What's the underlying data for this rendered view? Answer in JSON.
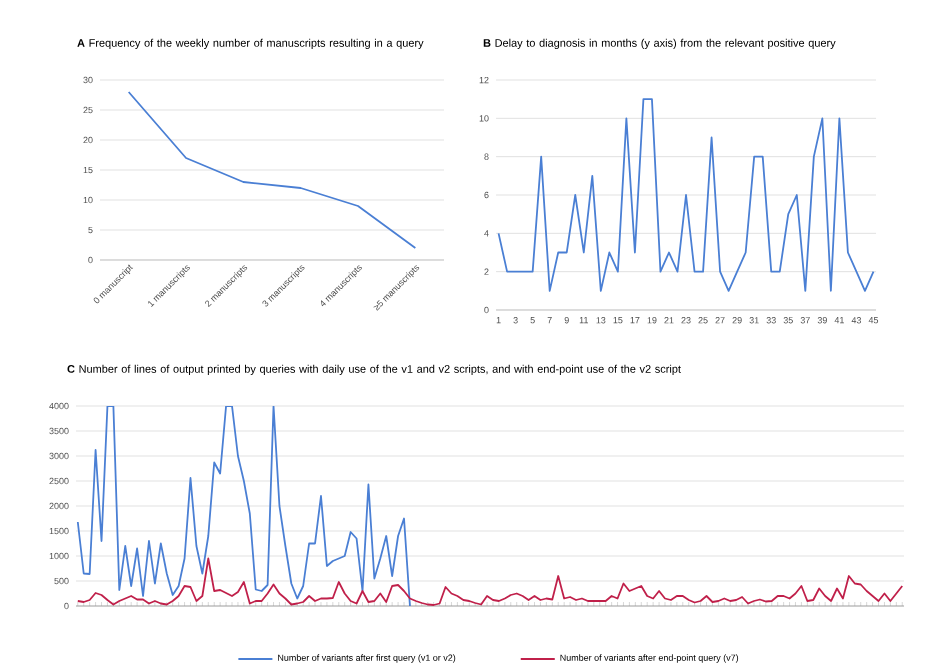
{
  "chart_data": [
    {
      "type": "line",
      "title": "**A**  Frequency of the weekly number of manuscripts resulting in a query",
      "categories": [
        "0 manuscript",
        "1 manuscripts",
        "2 manuscripts",
        "3 manuscripts",
        "4 manuscripts",
        "≥5 manuscripts"
      ],
      "series": [
        {
          "color": "#4a7fd4",
          "values": [
            28,
            17,
            13,
            12,
            9,
            2
          ]
        }
      ],
      "ylim": [
        0,
        30
      ],
      "yticks": [
        0,
        5,
        10,
        15,
        20,
        25,
        30
      ],
      "grid": "y",
      "legend": false,
      "marker": "none"
    },
    {
      "type": "line",
      "title": "**B**  Delay to diagnosis in months (y axis) from the relevant positive query",
      "categories": [
        "1",
        null,
        "3",
        null,
        "5",
        null,
        "7",
        null,
        "9",
        null,
        "11",
        null,
        "13",
        null,
        "15",
        null,
        "17",
        null,
        "19",
        null,
        "21",
        null,
        "23",
        null,
        "25",
        null,
        "27",
        null,
        "29",
        null,
        "31",
        null,
        "33",
        null,
        "35",
        null,
        "37",
        null,
        "39",
        null,
        "41",
        null,
        "43",
        null,
        "45"
      ],
      "series": [
        {
          "color": "#4a7fd4",
          "values": [
            4,
            2,
            2,
            2,
            2,
            8,
            1,
            3,
            3,
            6,
            3,
            7,
            1,
            3,
            2,
            10,
            3,
            11,
            11,
            2,
            3,
            2,
            6,
            2,
            2,
            9,
            2,
            1,
            2,
            3,
            8,
            8,
            2,
            2,
            5,
            6,
            1,
            8,
            10,
            1,
            10,
            3,
            2,
            1,
            2
          ]
        }
      ],
      "ylim": [
        0,
        12
      ],
      "yticks": [
        0,
        2,
        4,
        6,
        8,
        10,
        12
      ],
      "grid": "y",
      "legend": false,
      "marker": "none"
    },
    {
      "type": "line",
      "title": "**C**  Number of lines of output printed by queries with daily use of the v1 and v2 scripts, and with end-point use of the v2 script",
      "categories": [
        null,
        null,
        null,
        null,
        null,
        null,
        null,
        null,
        null,
        null,
        null,
        null,
        null,
        null,
        null,
        null,
        null,
        null,
        null,
        null,
        null,
        null,
        null,
        null,
        null,
        null,
        null,
        null,
        null,
        null,
        null,
        null,
        null,
        null,
        null,
        null,
        null,
        null,
        null,
        null,
        null,
        null,
        null,
        null,
        null,
        null,
        null,
        null,
        null,
        null,
        null,
        null,
        null,
        null,
        null,
        null,
        null,
        null,
        null,
        null,
        null,
        null,
        null,
        null,
        null,
        null,
        null,
        null,
        null,
        null,
        null,
        null,
        null,
        null,
        null,
        null,
        null,
        null,
        null,
        null,
        null,
        null,
        null,
        null,
        null,
        null,
        null,
        null,
        null,
        null,
        null,
        null,
        null,
        null,
        null,
        null,
        null,
        null,
        null,
        null,
        null,
        null,
        null,
        null,
        null,
        null,
        null,
        null,
        null,
        null,
        null,
        null,
        null,
        null,
        null,
        null,
        null,
        null,
        null,
        null,
        null,
        null,
        null,
        null,
        null,
        null,
        null,
        null,
        null,
        null,
        null,
        null,
        null,
        null,
        null,
        null,
        null,
        null,
        null,
        null
      ],
      "series": [
        {
          "name": "Number of variants after first query (v1 or v2)",
          "color": "#4a7fd4",
          "values": [
            1680,
            650,
            640,
            3120,
            1300,
            4000,
            4000,
            320,
            1200,
            400,
            1150,
            200,
            1300,
            450,
            1250,
            650,
            220,
            400,
            950,
            2560,
            1200,
            650,
            1400,
            2870,
            2650,
            4000,
            4000,
            3000,
            2500,
            1850,
            330,
            300,
            420,
            4000,
            2000,
            1200,
            450,
            150,
            400,
            1250,
            1250,
            2200,
            800,
            900,
            950,
            1000,
            1480,
            1350,
            300,
            2430,
            550,
            950,
            1400,
            600,
            1400,
            1750,
            0,
            null,
            null,
            null,
            null,
            null,
            null,
            null,
            null,
            null,
            null,
            null,
            null,
            null,
            null,
            null,
            null,
            null,
            null,
            null,
            null,
            null,
            null,
            null,
            null,
            null,
            null,
            null,
            null,
            null,
            null,
            null,
            null,
            null,
            null,
            null,
            null,
            null,
            null,
            null,
            null,
            null,
            null,
            null,
            null,
            null,
            null,
            null,
            null,
            null,
            null,
            null,
            null,
            null,
            null,
            null,
            null,
            null,
            null,
            null,
            null,
            null,
            null,
            null,
            null,
            null,
            null,
            null,
            null,
            null,
            null,
            null,
            null,
            null,
            null,
            null,
            null,
            null,
            null,
            null,
            null,
            null,
            null,
            null
          ]
        },
        {
          "name": "Number of variants after end-point query (v7)",
          "color": "#c0204a",
          "values": [
            100,
            80,
            120,
            260,
            220,
            120,
            30,
            100,
            150,
            200,
            130,
            130,
            50,
            100,
            50,
            30,
            100,
            200,
            400,
            380,
            100,
            200,
            950,
            300,
            320,
            260,
            200,
            280,
            480,
            50,
            100,
            100,
            250,
            430,
            250,
            150,
            30,
            50,
            80,
            200,
            100,
            150,
            150,
            160,
            480,
            250,
            100,
            50,
            300,
            80,
            100,
            250,
            80,
            400,
            420,
            300,
            150,
            100,
            60,
            30,
            20,
            50,
            380,
            250,
            200,
            120,
            100,
            60,
            30,
            200,
            120,
            100,
            150,
            220,
            250,
            200,
            120,
            200,
            120,
            150,
            130,
            600,
            150,
            180,
            120,
            150,
            100,
            100,
            100,
            100,
            200,
            150,
            450,
            300,
            350,
            400,
            200,
            150,
            300,
            150,
            120,
            200,
            200,
            120,
            70,
            100,
            200,
            80,
            100,
            150,
            100,
            120,
            180,
            50,
            100,
            130,
            90,
            100,
            200,
            200,
            150,
            250,
            400,
            100,
            120,
            350,
            200,
            100,
            350,
            150,
            600,
            450,
            430,
            300,
            200,
            100,
            250,
            100,
            250,
            400
          ]
        }
      ],
      "ylim": [
        0,
        4000
      ],
      "yticks": [
        0,
        500,
        1000,
        1500,
        2000,
        2500,
        3000,
        3500,
        4000
      ],
      "grid": "y",
      "legend": "bottom",
      "marker": "none",
      "tick_labels": "y"
    }
  ]
}
